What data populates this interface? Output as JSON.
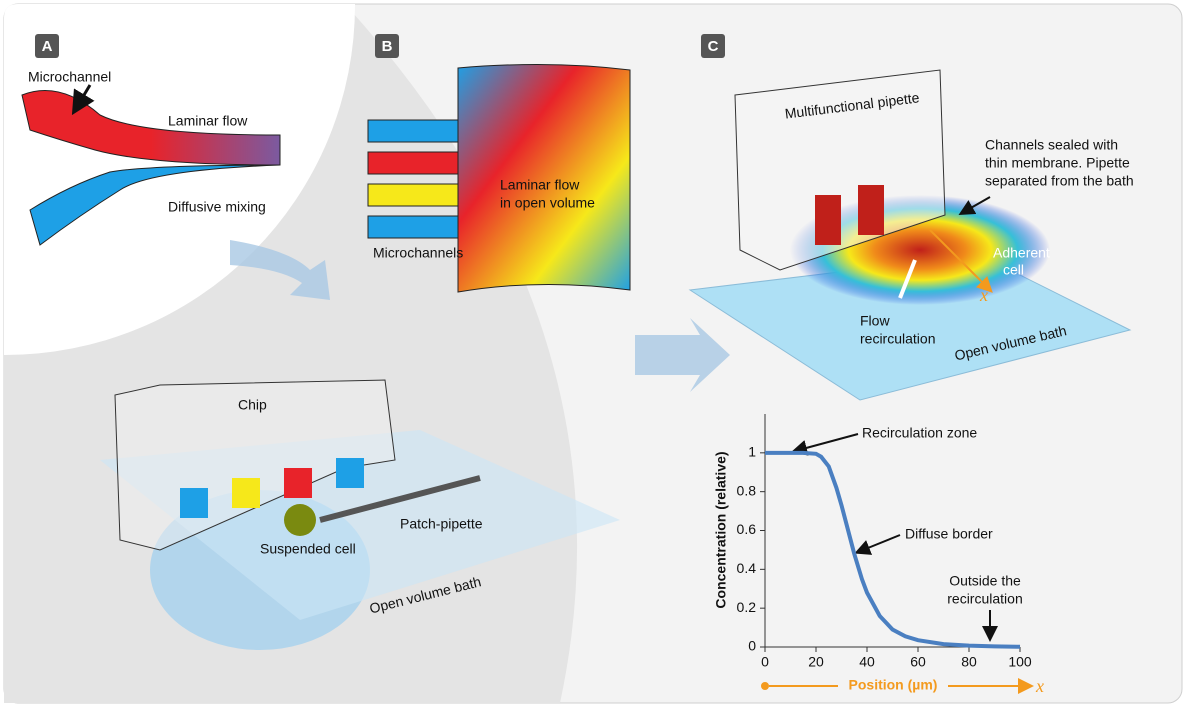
{
  "panel_a": {
    "label": "A",
    "microchannel": "Microchannel",
    "laminar_flow": "Laminar flow",
    "diffusive_mixing": "Diffusive mixing"
  },
  "panel_b": {
    "label": "B",
    "laminar_flow": [
      "Laminar flow",
      "in open volume"
    ],
    "microchannels": "Microchannels"
  },
  "chip_setup": {
    "chip": "Chip",
    "suspended_cell": "Suspended cell",
    "patch_pipette": "Patch-pipette",
    "bath": "Open volume bath"
  },
  "panel_c": {
    "label": "C",
    "pipette": "Multifunctional pipette",
    "channels_sealed": [
      "Channels sealed with",
      "thin membrane. Pipette",
      "separated from the bath"
    ],
    "adherent_cell": [
      "Adherent",
      "cell"
    ],
    "flow_recirculation": [
      "Flow",
      "recirculation"
    ],
    "bath": "Open volume bath",
    "x_symbol": "x"
  },
  "chart_data": {
    "type": "line",
    "xlabel": "Position (µm)",
    "x_symbol": "x",
    "ylabel": "Concentration (relative)",
    "color": "#4a7fc1",
    "x": [
      0,
      5,
      10,
      15,
      20,
      22,
      25,
      28,
      30,
      32,
      35,
      38,
      40,
      45,
      50,
      55,
      60,
      70,
      80,
      90,
      100
    ],
    "values": [
      1,
      1,
      1,
      1,
      0.995,
      0.98,
      0.93,
      0.82,
      0.73,
      0.63,
      0.48,
      0.35,
      0.28,
      0.16,
      0.09,
      0.055,
      0.035,
      0.015,
      0.007,
      0.003,
      0.001
    ],
    "xlim": [
      0,
      100
    ],
    "ylim": [
      0,
      1.2
    ],
    "xticks": [
      0,
      20,
      40,
      60,
      80,
      100
    ],
    "yticks": [
      0,
      0.2,
      0.4,
      0.6,
      0.8,
      1
    ],
    "annotations": [
      [
        "Recirculation zone"
      ],
      [
        "Diffuse border"
      ],
      [
        "Outside the",
        "recirculation"
      ]
    ]
  }
}
